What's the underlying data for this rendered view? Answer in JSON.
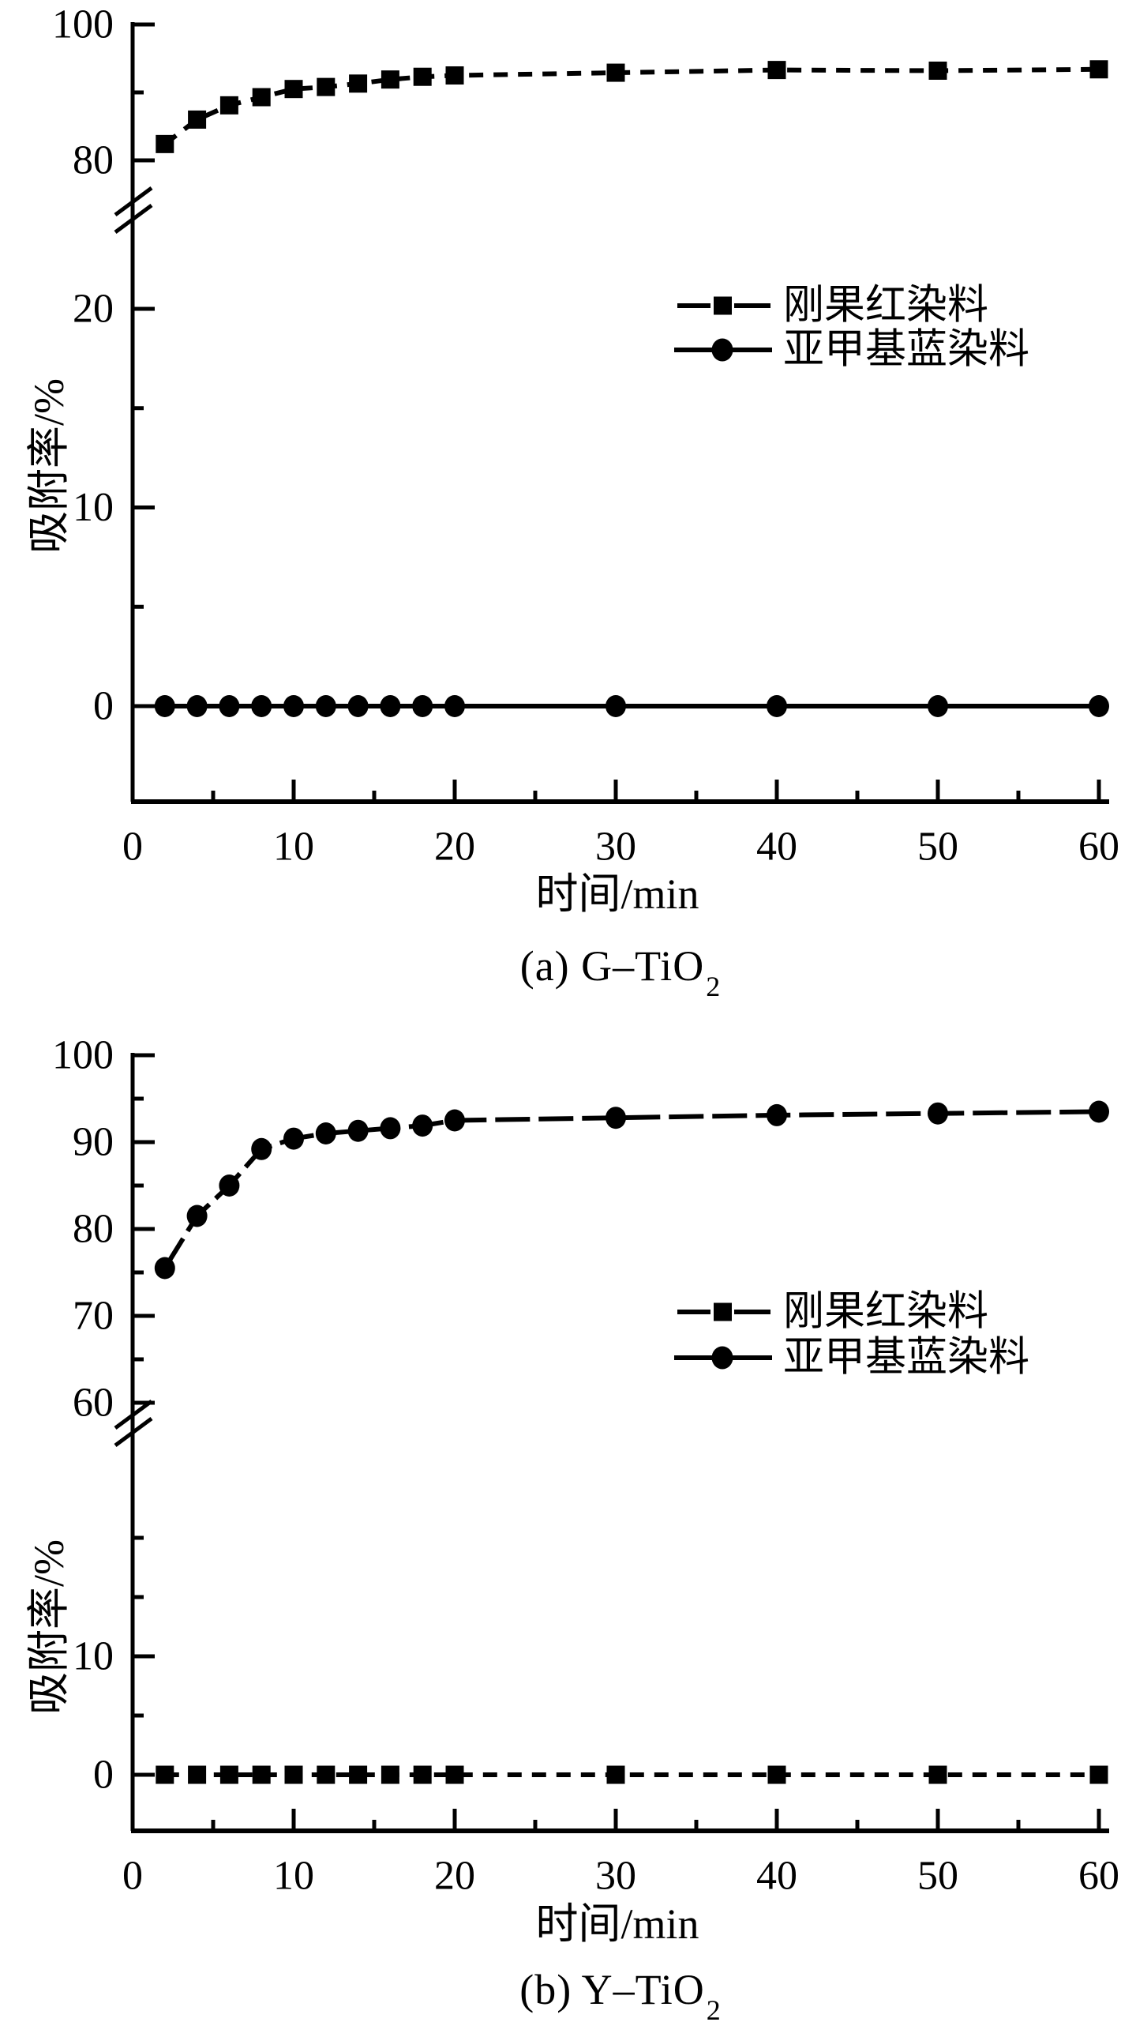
{
  "colors": {
    "ink": "#000000",
    "background": "#ffffff"
  },
  "chart_data": [
    {
      "id": "a",
      "type": "line",
      "title": "(a) G–TiO2",
      "caption_prefix": "(a) G–TiO",
      "caption_sub": "2",
      "xlabel": "时间/min",
      "ylabel": "吸附率/%",
      "x_axis": {
        "min": 0,
        "max": 60,
        "major_ticks": [
          0,
          10,
          20,
          30,
          40,
          50,
          60
        ],
        "minor_ticks": [
          5,
          15,
          25,
          35,
          45,
          55
        ]
      },
      "y_axis": {
        "broken": true,
        "upper_segment_range": [
          80,
          100
        ],
        "lower_segment_range": [
          0,
          25
        ],
        "upper_labeled_ticks": [
          100,
          80
        ],
        "upper_minor_ticks": [
          90
        ],
        "lower_labeled_ticks": [
          20,
          10,
          0
        ],
        "lower_minor_ticks": [
          15,
          5
        ]
      },
      "legend_position": "center-right",
      "grid": false,
      "series": [
        {
          "name": "刚果红染料",
          "marker": "square",
          "line": "dashed",
          "x": [
            2,
            4,
            6,
            8,
            10,
            12,
            14,
            16,
            18,
            20,
            30,
            40,
            50,
            60
          ],
          "y": [
            82.4,
            86.0,
            88.1,
            89.3,
            90.5,
            90.8,
            91.3,
            91.9,
            92.3,
            92.5,
            92.9,
            93.3,
            93.2,
            93.4
          ]
        },
        {
          "name": "亚甲基蓝染料",
          "marker": "circle",
          "line": "solid",
          "x": [
            2,
            4,
            6,
            8,
            10,
            12,
            14,
            16,
            18,
            20,
            30,
            40,
            50,
            60
          ],
          "y": [
            0,
            0,
            0,
            0,
            0,
            0,
            0,
            0,
            0,
            0,
            0,
            0,
            0,
            0
          ]
        }
      ]
    },
    {
      "id": "b",
      "type": "line",
      "title": "(b) Y–TiO2",
      "caption_prefix": "(b) Y–TiO",
      "caption_sub": "2",
      "xlabel": "时间/min",
      "ylabel": "吸附率/%",
      "x_axis": {
        "min": 0,
        "max": 60,
        "major_ticks": [
          0,
          10,
          20,
          30,
          40,
          50,
          60
        ],
        "minor_ticks": [
          5,
          15,
          25,
          35,
          45,
          55
        ]
      },
      "y_axis": {
        "broken": true,
        "upper_segment_range": [
          60,
          100
        ],
        "lower_segment_range": [
          0,
          25
        ],
        "upper_labeled_ticks": [
          100,
          90,
          80,
          70,
          60
        ],
        "upper_minor_ticks": [
          95,
          85,
          75,
          65
        ],
        "lower_labeled_ticks": [
          10,
          0
        ],
        "lower_minor_ticks": [
          20,
          15,
          5
        ]
      },
      "legend_position": "center-right",
      "grid": false,
      "series": [
        {
          "name": "刚果红染料",
          "marker": "square",
          "line": "dashed",
          "x": [
            2,
            4,
            6,
            8,
            10,
            12,
            14,
            16,
            18,
            20,
            30,
            40,
            50,
            60
          ],
          "y": [
            0,
            0,
            0,
            0,
            0,
            0,
            0,
            0,
            0,
            0,
            0,
            0,
            0,
            0
          ]
        },
        {
          "name": "亚甲基蓝染料",
          "marker": "circle",
          "line": "longdash",
          "x": [
            2,
            4,
            6,
            8,
            10,
            12,
            14,
            16,
            18,
            20,
            30,
            40,
            50,
            60
          ],
          "y": [
            75.5,
            81.5,
            85.0,
            89.2,
            90.4,
            91.0,
            91.3,
            91.6,
            91.9,
            92.5,
            92.8,
            93.1,
            93.3,
            93.5
          ]
        }
      ]
    }
  ]
}
